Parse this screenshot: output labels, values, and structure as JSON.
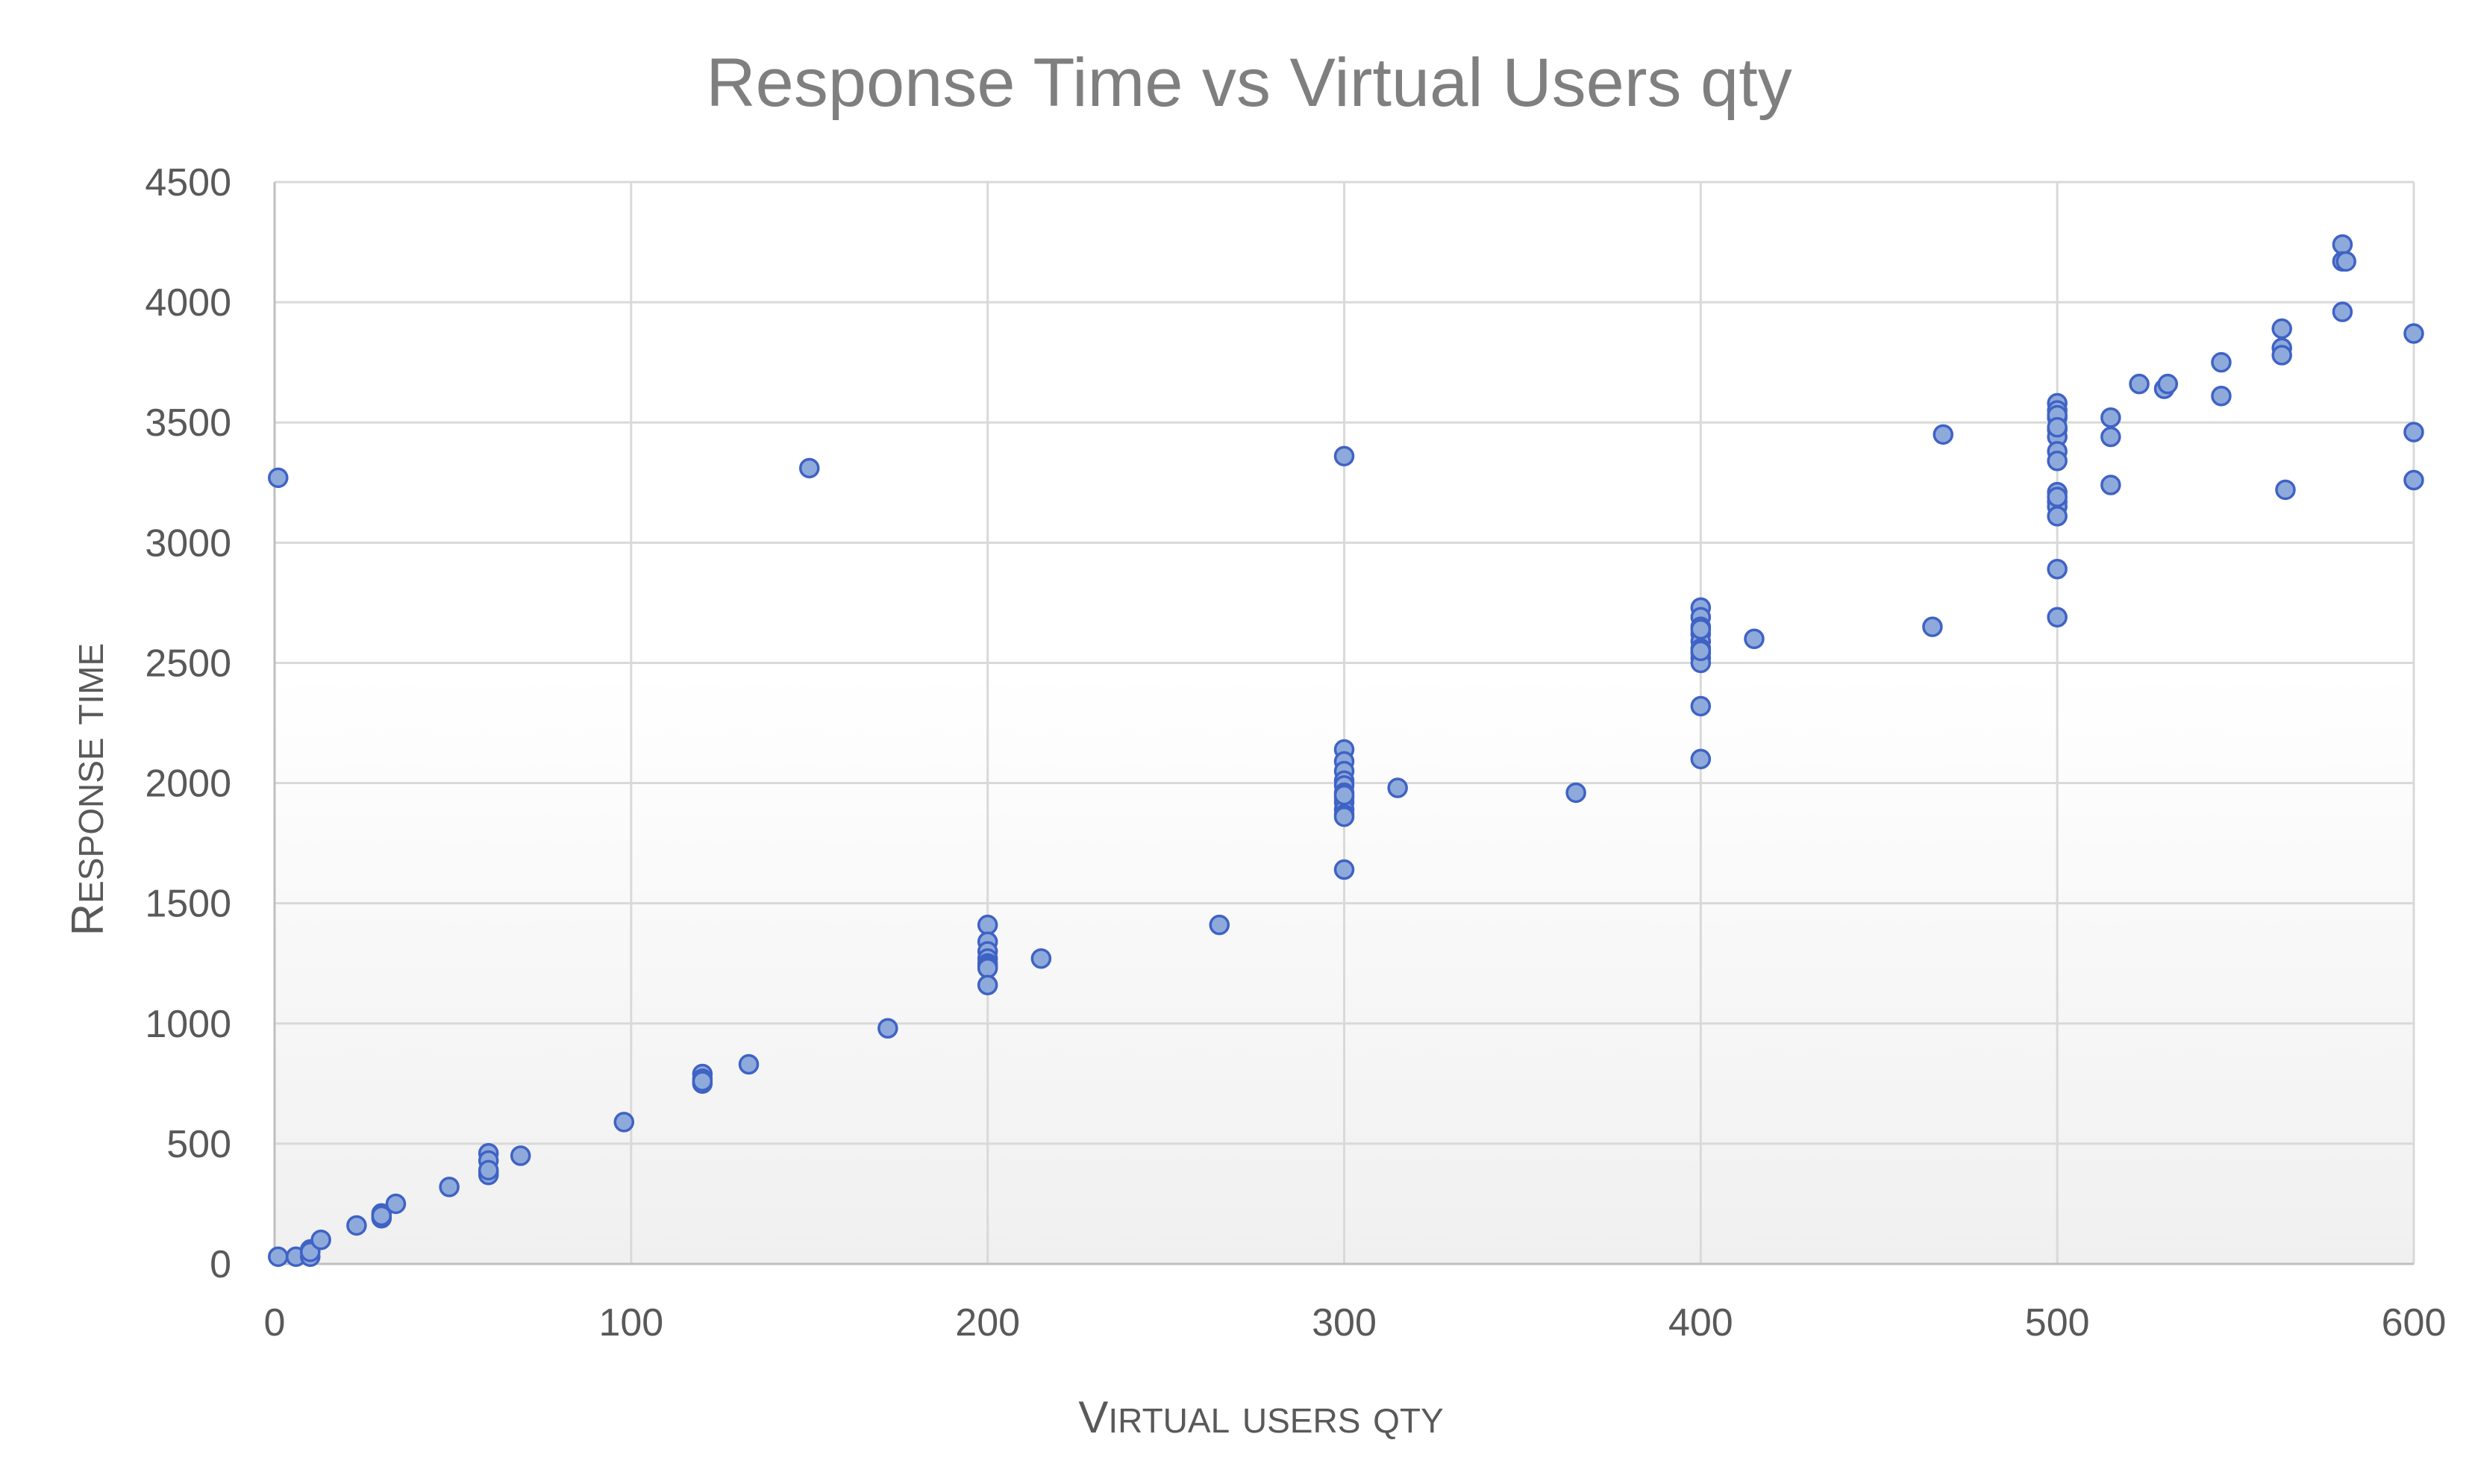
{
  "chart_data": {
    "type": "scatter",
    "title": "Response Time vs Virtual Users qty",
    "xlabel": "Virtual users qty",
    "ylabel": "Response time",
    "xlim": [
      0,
      600
    ],
    "ylim": [
      0,
      4500
    ],
    "xticks": [
      "0",
      "100",
      "200",
      "300",
      "400",
      "500",
      "600"
    ],
    "yticks": [
      "0",
      "500",
      "1000",
      "1500",
      "2000",
      "2500",
      "3000",
      "3500",
      "4000",
      "4500"
    ],
    "grid": true,
    "legend": "none",
    "marker_fill": "#8eaadb",
    "marker_edge": "#3f62c5",
    "series": [
      {
        "x": [
          1,
          1,
          6,
          10,
          10,
          10,
          13,
          23,
          30,
          30,
          30,
          34,
          49,
          60,
          60,
          60,
          60,
          60,
          69,
          98,
          120,
          120,
          120,
          120,
          133,
          150,
          172,
          200,
          200,
          200,
          200,
          200,
          200,
          200,
          200,
          215,
          265,
          300,
          300,
          300,
          300,
          300,
          300,
          300,
          300,
          300,
          300,
          300,
          300,
          300,
          300,
          315,
          365,
          400,
          400,
          400,
          400,
          400,
          400,
          400,
          400,
          400,
          400,
          400,
          400,
          400,
          415,
          465,
          468,
          500,
          500,
          500,
          500,
          500,
          500,
          500,
          500,
          500,
          500,
          500,
          500,
          500,
          500,
          500,
          500,
          515,
          515,
          515,
          523,
          530,
          531,
          546,
          546,
          563,
          563,
          563,
          564,
          580,
          580,
          580,
          581,
          600,
          600,
          600
        ],
        "y": [
          30,
          3270,
          30,
          30,
          60,
          50,
          100,
          160,
          190,
          210,
          200,
          250,
          320,
          460,
          430,
          380,
          370,
          390,
          450,
          590,
          790,
          770,
          750,
          760,
          830,
          3310,
          980,
          1410,
          1340,
          1300,
          1270,
          1250,
          1240,
          1230,
          1160,
          1270,
          1410,
          3360,
          2140,
          2090,
          2050,
          2010,
          1990,
          1960,
          1940,
          1920,
          1890,
          1870,
          1860,
          1950,
          1640,
          1980,
          1960,
          2730,
          2690,
          2650,
          2620,
          2590,
          2560,
          2540,
          2520,
          2500,
          2550,
          2640,
          2320,
          2100,
          2600,
          2650,
          3450,
          3580,
          3550,
          3520,
          3470,
          3440,
          3380,
          3340,
          3210,
          3170,
          3150,
          3110,
          3190,
          2890,
          2690,
          3530,
          3480,
          3520,
          3440,
          3240,
          3660,
          3640,
          3660,
          3750,
          3610,
          3890,
          3810,
          3780,
          3220,
          4240,
          4170,
          3960,
          4170,
          3870,
          3460,
          3260
        ]
      }
    ]
  }
}
